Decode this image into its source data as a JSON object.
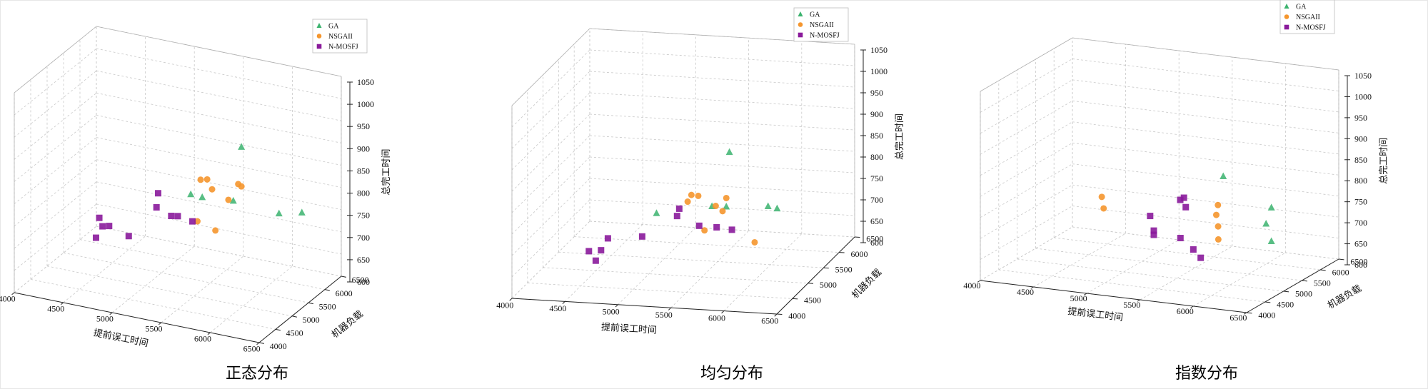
{
  "colors": {
    "GA": "#3bb36e",
    "NSGAII": "#f5962e",
    "N-MOSFJ": "#8a1a9b"
  },
  "chart_data": [
    {
      "type": "scatter",
      "title": "正态分布",
      "xlabel": "提前误工时间",
      "ylabel": "机器负载",
      "zlabel": "总完工时间",
      "xlim": [
        4000,
        6500
      ],
      "ylim": [
        4000,
        6500
      ],
      "zlim": [
        600,
        1050
      ],
      "x_ticks": [
        "4000",
        "4500",
        "5000",
        "5500",
        "6000",
        "6500"
      ],
      "y_ticks": [
        "4000",
        "4500",
        "5000",
        "5500",
        "6000",
        "6500"
      ],
      "z_ticks": [
        "600",
        "650",
        "700",
        "750",
        "800",
        "850",
        "900",
        "950",
        "1000",
        "1050"
      ],
      "legend": [
        "GA",
        "NSGAII",
        "N-MOSFJ"
      ],
      "series": [
        {
          "name": "GA",
          "marker": "triangle",
          "points": [
            [
              5950,
              5100,
              950
            ],
            [
              6500,
              5300,
              815
            ],
            [
              6300,
              5200,
              810
            ],
            [
              5500,
              4900,
              835
            ],
            [
              5600,
              4950,
              830
            ],
            [
              5800,
              5300,
              810
            ]
          ]
        },
        {
          "name": "NSGAII",
          "marker": "circle",
          "points": [
            [
              5500,
              5200,
              850
            ],
            [
              5550,
              5250,
              850
            ],
            [
              5900,
              5250,
              850
            ],
            [
              5850,
              5300,
              850
            ],
            [
              5600,
              5250,
              830
            ],
            [
              5750,
              5300,
              810
            ],
            [
              5400,
              5400,
              740
            ],
            [
              5550,
              5500,
              720
            ]
          ]
        },
        {
          "name": "N-MOSFJ",
          "marker": "square",
          "points": [
            [
              5200,
              4800,
              830
            ],
            [
              5150,
              4900,
              790
            ],
            [
              4700,
              4500,
              770
            ],
            [
              5300,
              5100,
              765
            ],
            [
              5450,
              5100,
              760
            ],
            [
              5200,
              5200,
              755
            ],
            [
              4700,
              4600,
              745
            ],
            [
              4750,
              4650,
              745
            ],
            [
              4900,
              4800,
              720
            ],
            [
              4650,
              4550,
              720
            ]
          ]
        }
      ]
    },
    {
      "type": "scatter",
      "title": "均匀分布",
      "xlabel": "提前误工时间",
      "ylabel": "机器负载",
      "zlabel": "总完工时间",
      "xlim": [
        4000,
        6500
      ],
      "ylim": [
        4000,
        6500
      ],
      "zlim": [
        600,
        1050
      ],
      "x_ticks": [
        "4000",
        "4500",
        "5000",
        "5500",
        "6000",
        "6500"
      ],
      "y_ticks": [
        "4000",
        "4500",
        "5000",
        "5500",
        "6000",
        "6500"
      ],
      "z_ticks": [
        "600",
        "650",
        "700",
        "750",
        "800",
        "850",
        "900",
        "950",
        "1000",
        "1050"
      ],
      "legend": [
        "GA",
        "NSGAII",
        "N-MOSFJ"
      ],
      "series": [
        {
          "name": "GA",
          "marker": "triangle",
          "points": [
            [
              5700,
              5200,
              880
            ],
            [
              6150,
              5200,
              755
            ],
            [
              6050,
              5250,
              755
            ],
            [
              5700,
              5100,
              760
            ],
            [
              5550,
              5150,
              755
            ],
            [
              5100,
              4900,
              750
            ]
          ]
        },
        {
          "name": "NSGAII",
          "marker": "circle",
          "points": [
            [
              5400,
              5000,
              790
            ],
            [
              5450,
              5050,
              785
            ],
            [
              5700,
              5100,
              780
            ],
            [
              5350,
              5050,
              770
            ],
            [
              5600,
              5100,
              760
            ],
            [
              5650,
              5150,
              745
            ],
            [
              5450,
              5250,
              690
            ],
            [
              5850,
              5500,
              650
            ]
          ]
        },
        {
          "name": "N-MOSFJ",
          "marker": "square",
          "points": [
            [
              5300,
              4950,
              760
            ],
            [
              5250,
              5050,
              735
            ],
            [
              4700,
              4700,
              700
            ],
            [
              5400,
              5250,
              700
            ],
            [
              5550,
              5300,
              695
            ],
            [
              4950,
              4950,
              690
            ],
            [
              5650,
              5450,
              680
            ],
            [
              4650,
              4650,
              675
            ],
            [
              4550,
              4600,
              675
            ],
            [
              4600,
              4650,
              650
            ]
          ]
        }
      ]
    },
    {
      "type": "scatter",
      "title": "指数分布",
      "xlabel": "提前误工时间",
      "ylabel": "机器负载",
      "zlabel": "总完工时间",
      "xlim": [
        4000,
        6500
      ],
      "ylim": [
        4000,
        6500
      ],
      "zlim": [
        600,
        1050
      ],
      "x_ticks": [
        "4000",
        "4500",
        "5000",
        "5500",
        "6000",
        "6500"
      ],
      "y_ticks": [
        "4000",
        "4500",
        "5000",
        "5500",
        "6000",
        "6500"
      ],
      "z_ticks": [
        "600",
        "650",
        "700",
        "750",
        "800",
        "850",
        "900",
        "950",
        "1000",
        "1050"
      ],
      "legend": [
        "GA",
        "NSGAII",
        "N-MOSFJ"
      ],
      "series": [
        {
          "name": "GA",
          "marker": "triangle",
          "points": [
            [
              5900,
              5100,
              850
            ],
            [
              6300,
              5250,
              780
            ],
            [
              6250,
              5250,
              740
            ],
            [
              6300,
              5250,
              700
            ]
          ]
        },
        {
          "name": "NSGAII",
          "marker": "circle",
          "points": [
            [
              4950,
              4550,
              800
            ],
            [
              4950,
              4600,
              770
            ],
            [
              5850,
              5100,
              780
            ],
            [
              5800,
              5200,
              750
            ],
            [
              5800,
              5250,
              720
            ],
            [
              5750,
              5400,
              680
            ]
          ]
        },
        {
          "name": "N-MOSFJ",
          "marker": "square",
          "points": [
            [
              5600,
              4800,
              800
            ],
            [
              5600,
              4900,
              800
            ],
            [
              5600,
              4950,
              775
            ],
            [
              5300,
              4850,
              750
            ],
            [
              5300,
              4950,
              710
            ],
            [
              5550,
              4950,
              700
            ],
            [
              5300,
              4950,
              700
            ],
            [
              5550,
              5300,
              655
            ],
            [
              5550,
              5500,
              625
            ]
          ]
        }
      ]
    }
  ]
}
